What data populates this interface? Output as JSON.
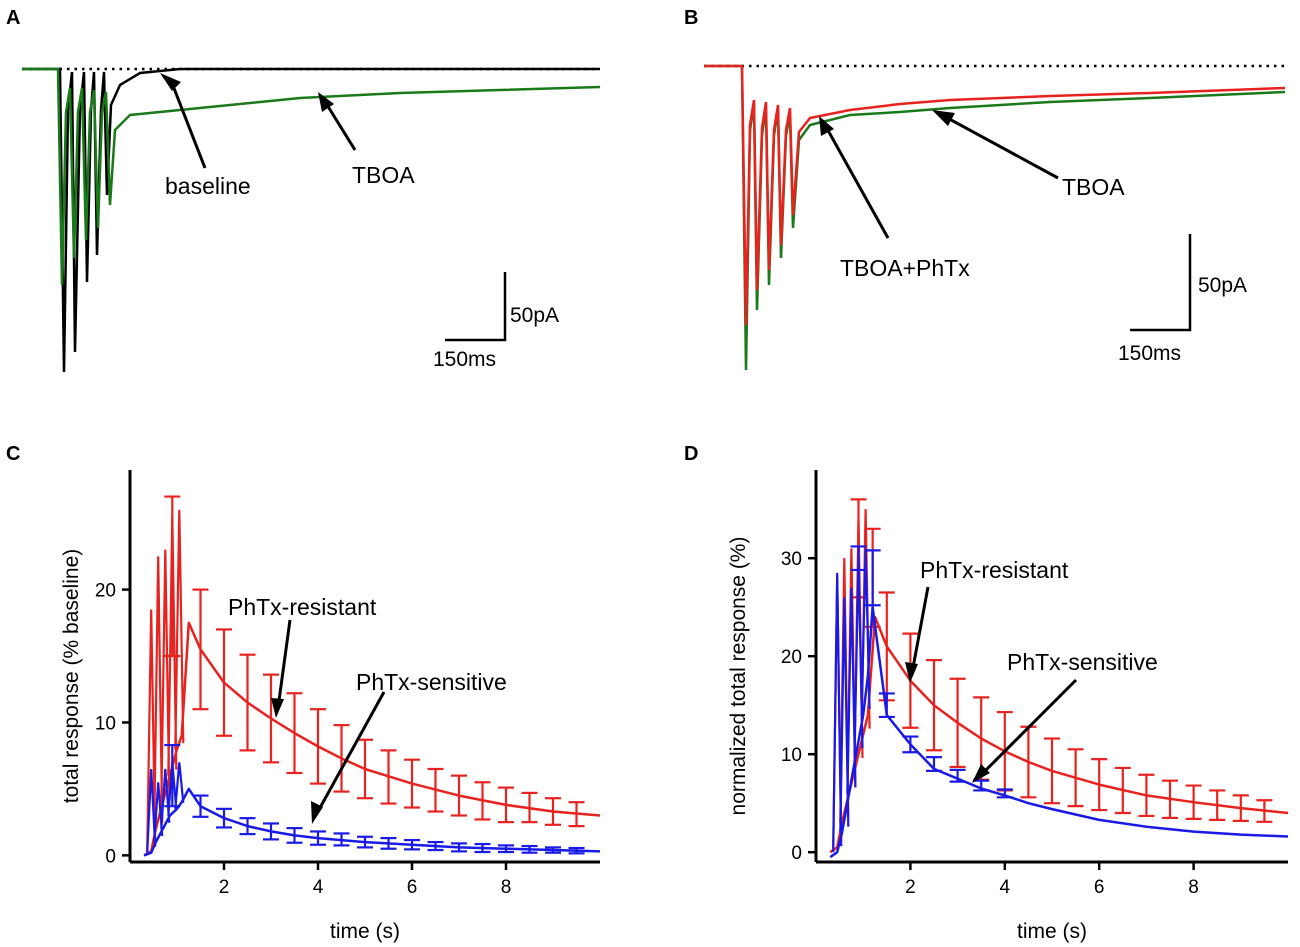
{
  "panels": {
    "A": {
      "label": "A",
      "annotations": [
        "baseline",
        "TBOA"
      ],
      "scalebar": {
        "current": "50pA",
        "time": "150ms"
      }
    },
    "B": {
      "label": "B",
      "annotations": [
        "TBOA",
        "TBOA+PhTx"
      ],
      "scalebar": {
        "current": "50pA",
        "time": "150ms"
      }
    },
    "C": {
      "label": "C"
    },
    "D": {
      "label": "D"
    }
  },
  "colors": {
    "baseline": "#000000",
    "tboa": "#1a7a1a",
    "resistant": "#e8231f",
    "sensitive": "#1a1ae6",
    "dotted": "#000000"
  },
  "chart_data": [
    {
      "id": "C",
      "type": "line",
      "title": "",
      "xlabel": "time (s)",
      "ylabel": "total response (% baseline)",
      "xlim": [
        0,
        10
      ],
      "ylim": [
        -0.5,
        29
      ],
      "xticks": [
        2,
        4,
        6,
        8
      ],
      "yticks": [
        0,
        10,
        20
      ],
      "series": [
        {
          "name": "PhTx-resistant",
          "color": "#e8231f",
          "x": [
            0.3,
            0.45,
            0.55,
            0.7,
            0.85,
            1.0,
            1.1,
            1.25,
            1.5,
            2.0,
            2.5,
            3.0,
            3.5,
            4.0,
            4.5,
            5.0,
            6.0,
            7.0,
            8.0,
            9.0,
            10.0
          ],
          "y": [
            0,
            0.3,
            2,
            4,
            6,
            8,
            9,
            17.5,
            15.5,
            13,
            11.5,
            10.3,
            9.2,
            8.2,
            7.3,
            6.5,
            5.4,
            4.5,
            3.8,
            3.3,
            3.0
          ],
          "peaks": [
            18.5,
            22.5,
            23,
            25.5,
            26
          ],
          "errorbars": {
            "x": [
              0.9,
              1.5,
              2.0,
              2.5,
              3.0,
              3.5,
              4.0,
              4.5,
              5.0,
              5.5,
              6.0,
              6.5,
              7.0,
              7.5,
              8.0,
              8.5,
              9.0,
              9.5
            ],
            "y": [
              21,
              15.5,
              13,
              11.5,
              10.3,
              9.2,
              8.2,
              7.3,
              6.5,
              5.9,
              5.4,
              4.9,
              4.5,
              4.1,
              3.8,
              3.6,
              3.3,
              3.1
            ],
            "err": [
              6,
              4.5,
              4,
              3.6,
              3.3,
              3.0,
              2.8,
              2.5,
              2.2,
              2.0,
              1.8,
              1.6,
              1.5,
              1.4,
              1.3,
              1.1,
              1.0,
              0.9
            ]
          }
        },
        {
          "name": "PhTx-sensitive",
          "color": "#1a1ae6",
          "x": [
            0.3,
            0.45,
            0.55,
            0.7,
            0.85,
            1.0,
            1.1,
            1.25,
            1.5,
            2.0,
            2.5,
            3.0,
            3.5,
            4.0,
            5.0,
            6.0,
            7.0,
            8.0,
            9.0,
            10.0
          ],
          "y": [
            0,
            0.2,
            1,
            2,
            3,
            3.5,
            4,
            5,
            3.7,
            2.8,
            2.2,
            1.8,
            1.5,
            1.3,
            1.0,
            0.8,
            0.6,
            0.5,
            0.4,
            0.3
          ],
          "peaks": [
            6.5,
            5.5,
            6.5,
            7,
            7
          ],
          "errorbars": {
            "x": [
              0.9,
              1.5,
              2.0,
              2.5,
              3.0,
              3.5,
              4.0,
              4.5,
              5.0,
              5.5,
              6.0,
              6.5,
              7.0,
              7.5,
              8.0,
              8.5,
              9.0,
              9.5
            ],
            "y": [
              6,
              3.7,
              2.8,
              2.2,
              1.8,
              1.5,
              1.3,
              1.2,
              1.0,
              0.9,
              0.8,
              0.7,
              0.6,
              0.55,
              0.5,
              0.45,
              0.4,
              0.35
            ],
            "err": [
              2.3,
              0.8,
              0.7,
              0.6,
              0.6,
              0.55,
              0.5,
              0.45,
              0.4,
              0.4,
              0.35,
              0.3,
              0.3,
              0.3,
              0.25,
              0.25,
              0.2,
              0.2
            ]
          }
        }
      ],
      "annotations": [
        "PhTx-resistant",
        "PhTx-sensitive"
      ]
    },
    {
      "id": "D",
      "type": "line",
      "title": "",
      "xlabel": "time (s)",
      "ylabel": "normalized total response (%)",
      "xlim": [
        0,
        10
      ],
      "ylim": [
        -1,
        39
      ],
      "xticks": [
        2,
        4,
        6,
        8
      ],
      "yticks": [
        0,
        10,
        20,
        30
      ],
      "series": [
        {
          "name": "PhTx-resistant",
          "color": "#e8231f",
          "x": [
            0.3,
            0.45,
            0.55,
            0.7,
            0.85,
            1.0,
            1.1,
            1.25,
            1.5,
            2.0,
            2.5,
            3.0,
            3.5,
            4.0,
            4.5,
            5.0,
            6.0,
            7.0,
            8.0,
            9.0,
            10.0
          ],
          "y": [
            0,
            0.5,
            3,
            6,
            9,
            12,
            14,
            24,
            21,
            17.5,
            15,
            13.2,
            11.6,
            10.3,
            9.2,
            8.3,
            6.9,
            5.8,
            5.1,
            4.5,
            4.0
          ],
          "peaks": [
            28,
            30,
            31,
            34,
            35
          ],
          "errorbars": {
            "x": [
              0.9,
              1.2,
              1.5,
              2.0,
              2.5,
              3.0,
              3.5,
              4.0,
              4.5,
              5.0,
              5.5,
              6.0,
              6.5,
              7.0,
              7.5,
              8.0,
              8.5,
              9.0,
              9.5
            ],
            "y": [
              31,
              28,
              21,
              17.5,
              15,
              13.2,
              11.6,
              10.3,
              9.2,
              8.3,
              7.6,
              6.9,
              6.3,
              5.8,
              5.4,
              5.1,
              4.8,
              4.5,
              4.2
            ],
            "err": [
              5,
              5,
              5.5,
              4.8,
              4.6,
              4.5,
              4.2,
              4.0,
              3.6,
              3.3,
              2.9,
              2.6,
              2.3,
              2.1,
              1.9,
              1.7,
              1.5,
              1.3,
              1.1
            ]
          }
        },
        {
          "name": "PhTx-sensitive",
          "color": "#1a1ae6",
          "x": [
            0.3,
            0.45,
            0.55,
            0.7,
            0.85,
            1.0,
            1.1,
            1.2,
            1.5,
            2.0,
            2.5,
            3.0,
            3.5,
            4.0,
            4.5,
            5.0,
            6.0,
            7.0,
            8.0,
            9.0,
            10.0
          ],
          "y": [
            -0.5,
            0,
            2,
            6,
            10,
            14,
            18,
            25,
            14,
            11,
            8.5,
            7.5,
            6.5,
            5.8,
            5.0,
            4.4,
            3.3,
            2.6,
            2.1,
            1.8,
            1.6
          ],
          "peaks": [
            28.5,
            26,
            27,
            30,
            31
          ],
          "errorbars": {
            "x": [
              0.9,
              1.2,
              1.5,
              2.0,
              2.5,
              3.0,
              3.5,
              4.0
            ],
            "y": [
              30,
              28,
              15,
              11,
              9,
              7.8,
              6.8,
              6.0
            ],
            "err": [
              1.2,
              2.8,
              1.2,
              0.8,
              0.7,
              0.6,
              0.5,
              0.4
            ]
          }
        }
      ],
      "annotations": [
        "PhTx-resistant",
        "PhTx-sensitive"
      ]
    }
  ]
}
